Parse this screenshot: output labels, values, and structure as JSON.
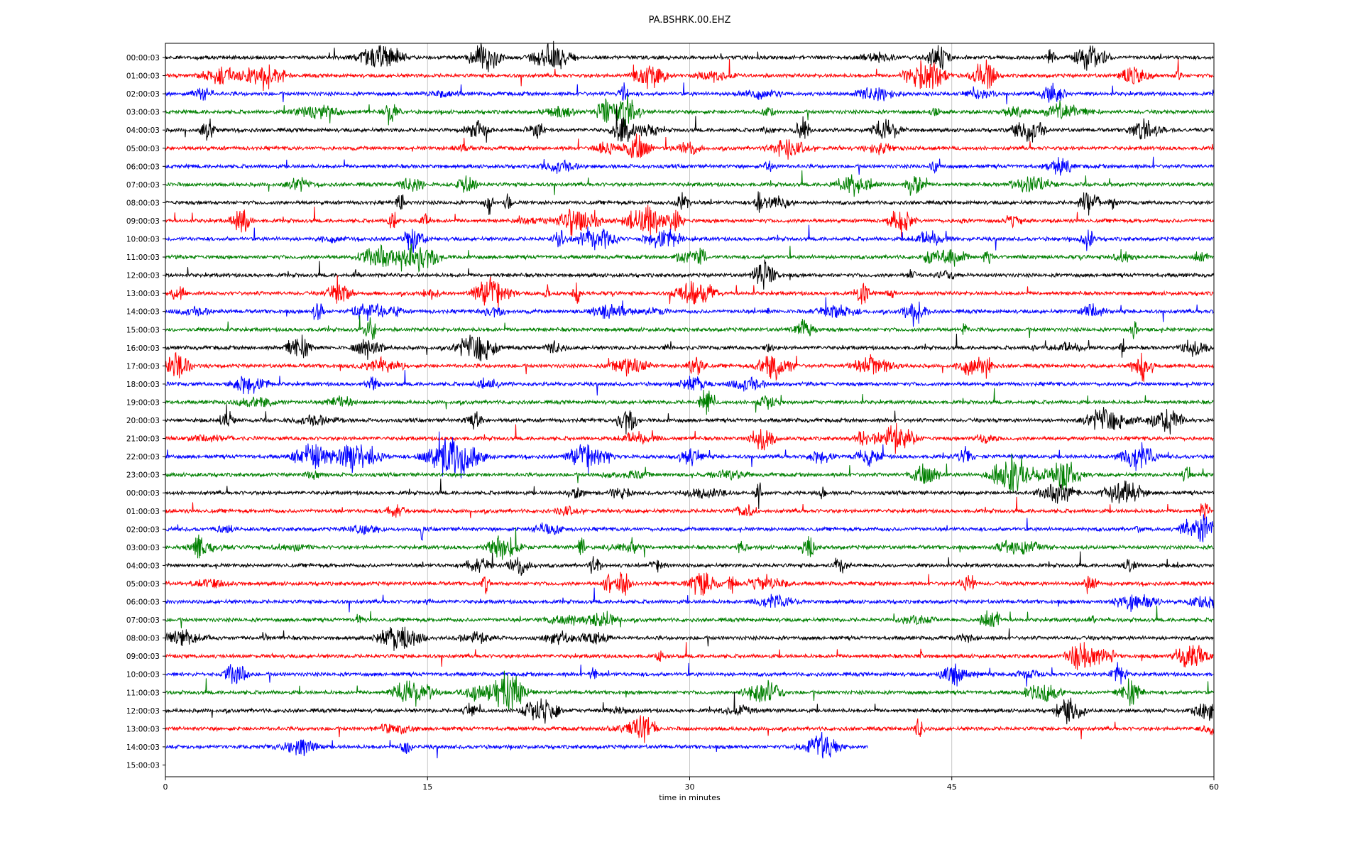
{
  "chart_data": {
    "type": "line",
    "title": "PA.BSHRK.00.EHZ",
    "xlabel": "time in minutes",
    "ylabel": "",
    "xlim": [
      0,
      60
    ],
    "x_ticks": [
      "0",
      "15",
      "30",
      "45",
      "60"
    ],
    "grid": "vertical",
    "colors": [
      "#000000",
      "#ff0000",
      "#0000ff",
      "#008000"
    ],
    "traces": [
      {
        "label": "00:00:03",
        "color": "#000000",
        "end": 60
      },
      {
        "label": "01:00:03",
        "color": "#ff0000",
        "end": 60
      },
      {
        "label": "02:00:03",
        "color": "#0000ff",
        "end": 60
      },
      {
        "label": "03:00:03",
        "color": "#008000",
        "end": 60
      },
      {
        "label": "04:00:03",
        "color": "#000000",
        "end": 60
      },
      {
        "label": "05:00:03",
        "color": "#ff0000",
        "end": 60
      },
      {
        "label": "06:00:03",
        "color": "#0000ff",
        "end": 60
      },
      {
        "label": "07:00:03",
        "color": "#008000",
        "end": 60
      },
      {
        "label": "08:00:03",
        "color": "#000000",
        "end": 60
      },
      {
        "label": "09:00:03",
        "color": "#ff0000",
        "end": 60
      },
      {
        "label": "10:00:03",
        "color": "#0000ff",
        "end": 60
      },
      {
        "label": "11:00:03",
        "color": "#008000",
        "end": 60
      },
      {
        "label": "12:00:03",
        "color": "#000000",
        "end": 60
      },
      {
        "label": "13:00:03",
        "color": "#ff0000",
        "end": 60
      },
      {
        "label": "14:00:03",
        "color": "#0000ff",
        "end": 60
      },
      {
        "label": "15:00:03",
        "color": "#008000",
        "end": 60
      },
      {
        "label": "16:00:03",
        "color": "#000000",
        "end": 60
      },
      {
        "label": "17:00:03",
        "color": "#ff0000",
        "end": 60
      },
      {
        "label": "18:00:03",
        "color": "#0000ff",
        "end": 60
      },
      {
        "label": "19:00:03",
        "color": "#008000",
        "end": 60
      },
      {
        "label": "20:00:03",
        "color": "#000000",
        "end": 60
      },
      {
        "label": "21:00:03",
        "color": "#ff0000",
        "end": 60
      },
      {
        "label": "22:00:03",
        "color": "#0000ff",
        "end": 60
      },
      {
        "label": "23:00:03",
        "color": "#008000",
        "end": 60
      },
      {
        "label": "00:00:03",
        "color": "#000000",
        "end": 60
      },
      {
        "label": "01:00:03",
        "color": "#ff0000",
        "end": 60
      },
      {
        "label": "02:00:03",
        "color": "#0000ff",
        "end": 60
      },
      {
        "label": "03:00:03",
        "color": "#008000",
        "end": 60
      },
      {
        "label": "04:00:03",
        "color": "#000000",
        "end": 60
      },
      {
        "label": "05:00:03",
        "color": "#ff0000",
        "end": 60
      },
      {
        "label": "06:00:03",
        "color": "#0000ff",
        "end": 60
      },
      {
        "label": "07:00:03",
        "color": "#008000",
        "end": 60
      },
      {
        "label": "08:00:03",
        "color": "#000000",
        "end": 60
      },
      {
        "label": "09:00:03",
        "color": "#ff0000",
        "end": 60
      },
      {
        "label": "10:00:03",
        "color": "#0000ff",
        "end": 60
      },
      {
        "label": "11:00:03",
        "color": "#008000",
        "end": 60
      },
      {
        "label": "12:00:03",
        "color": "#000000",
        "end": 60
      },
      {
        "label": "13:00:03",
        "color": "#ff0000",
        "end": 60
      },
      {
        "label": "14:00:03",
        "color": "#0000ff",
        "end": 40.2
      },
      {
        "label": "15:00:03",
        "color": "#008000",
        "end": 0
      }
    ]
  }
}
